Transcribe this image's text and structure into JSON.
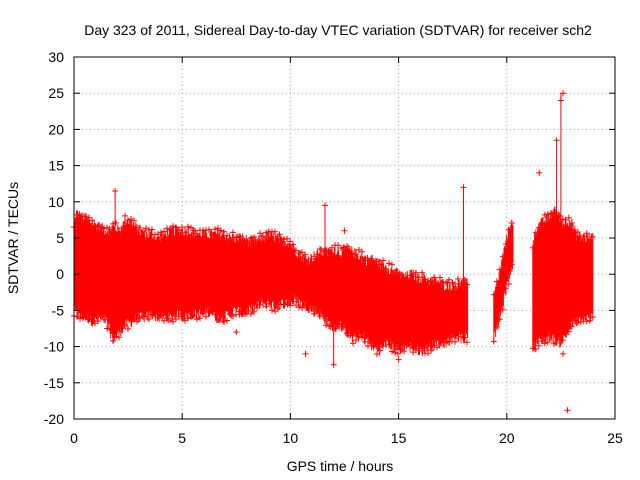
{
  "chart_data": {
    "type": "scatter",
    "title": "Day 323 of 2011, Sidereal Day-to-day VTEC variation (SDTVAR) for receiver sch2",
    "xlabel": "GPS time / hours",
    "ylabel": "SDTVAR / TECUs",
    "xlim": [
      0,
      25
    ],
    "ylim": [
      -20,
      30
    ],
    "xticks": [
      0,
      5,
      10,
      15,
      20,
      25
    ],
    "yticks": [
      -20,
      -15,
      -10,
      -5,
      0,
      5,
      10,
      15,
      20,
      25,
      30
    ],
    "grid": true,
    "marker": "+",
    "color": "#ff0000",
    "envelope_segments": [
      {
        "x": [
          0.0,
          0.1,
          0.3,
          0.6,
          0.9,
          1.2,
          1.5,
          1.8,
          2.1,
          2.4,
          2.7,
          3.0,
          3.3,
          3.6,
          3.9,
          4.2,
          4.5,
          4.8,
          5.1,
          5.4,
          5.7,
          6.0,
          6.3,
          6.6,
          6.9,
          7.2,
          7.5,
          7.8,
          8.1,
          8.4,
          8.7,
          9.0,
          9.3,
          9.6,
          9.9,
          10.2,
          10.5,
          10.8,
          11.1,
          11.4,
          11.7,
          12.0,
          12.3,
          12.6,
          12.9,
          13.2,
          13.5,
          13.8,
          14.1,
          14.4,
          14.7,
          15.0,
          15.3,
          15.6,
          15.9,
          16.2,
          16.5,
          16.8,
          17.1,
          17.4,
          17.7,
          18.0,
          18.2
        ],
        "upper": [
          6.5,
          8.5,
          8.0,
          7.5,
          7.0,
          6.5,
          6.0,
          6.5,
          6.0,
          7.5,
          7.0,
          6.0,
          5.5,
          5.5,
          5.0,
          5.5,
          6.0,
          6.0,
          6.0,
          6.0,
          5.5,
          5.5,
          5.5,
          5.5,
          5.5,
          5.0,
          5.0,
          5.0,
          4.5,
          4.5,
          5.0,
          5.5,
          5.0,
          4.5,
          4.5,
          3.5,
          2.5,
          2.0,
          2.5,
          3.0,
          3.0,
          3.5,
          3.0,
          3.5,
          3.0,
          2.5,
          2.0,
          2.0,
          1.5,
          1.0,
          0.5,
          0.0,
          -0.5,
          0.0,
          -0.5,
          -0.5,
          -1.0,
          -1.0,
          -1.5,
          -1.5,
          -1.5,
          -1.0,
          -1.5
        ],
        "lower": [
          -5.0,
          -5.5,
          -6.0,
          -6.0,
          -6.5,
          -6.0,
          -6.5,
          -9.0,
          -8.0,
          -7.0,
          -6.5,
          -6.0,
          -6.0,
          -5.5,
          -6.0,
          -6.0,
          -6.0,
          -5.5,
          -6.0,
          -5.5,
          -5.5,
          -5.5,
          -5.0,
          -6.0,
          -6.0,
          -5.5,
          -5.0,
          -5.5,
          -5.0,
          -4.5,
          -4.0,
          -4.0,
          -4.5,
          -4.0,
          -4.0,
          -3.5,
          -4.0,
          -4.5,
          -5.0,
          -5.5,
          -6.5,
          -7.5,
          -7.0,
          -8.0,
          -9.0,
          -8.5,
          -9.0,
          -10.0,
          -10.5,
          -9.5,
          -10.0,
          -10.5,
          -10.0,
          -10.0,
          -10.5,
          -10.5,
          -10.0,
          -9.5,
          -9.5,
          -9.0,
          -8.5,
          -9.0,
          -8.5
        ]
      },
      {
        "x": [
          19.4,
          19.6,
          19.8,
          20.0,
          20.2,
          20.3
        ],
        "upper": [
          -3.0,
          -1.0,
          2.0,
          5.0,
          7.5,
          6.0
        ],
        "lower": [
          -8.5,
          -7.0,
          -4.5,
          -1.5,
          0.5,
          2.0
        ]
      },
      {
        "x": [
          21.2,
          21.4,
          21.6,
          21.8,
          22.0,
          22.2,
          22.4,
          22.6,
          22.8,
          23.0,
          23.2,
          23.4,
          23.6,
          23.8,
          24.0
        ],
        "upper": [
          4.0,
          6.5,
          7.0,
          7.5,
          8.0,
          9.0,
          8.0,
          7.0,
          7.5,
          7.0,
          5.5,
          5.0,
          5.0,
          5.0,
          5.0
        ],
        "lower": [
          -10.0,
          -9.5,
          -9.0,
          -9.0,
          -8.5,
          -9.0,
          -9.5,
          -9.0,
          -8.0,
          -7.0,
          -6.5,
          -6.5,
          -6.0,
          -6.0,
          -6.0
        ]
      }
    ],
    "outliers": [
      {
        "x": 1.9,
        "y": 11.5
      },
      {
        "x": 10.7,
        "y": -11.0
      },
      {
        "x": 11.6,
        "y": 9.5
      },
      {
        "x": 12.0,
        "y": -12.5
      },
      {
        "x": 12.5,
        "y": 6.0
      },
      {
        "x": 15.0,
        "y": -11.8
      },
      {
        "x": 18.0,
        "y": 12.0
      },
      {
        "x": 21.5,
        "y": 14.0
      },
      {
        "x": 22.3,
        "y": 18.5
      },
      {
        "x": 22.5,
        "y": 24.0
      },
      {
        "x": 22.6,
        "y": 25.0
      },
      {
        "x": 22.6,
        "y": -11.0
      },
      {
        "x": 22.8,
        "y": -18.8
      },
      {
        "x": 7.5,
        "y": -8.0
      },
      {
        "x": 9.5,
        "y": 5.5
      },
      {
        "x": 16.5,
        "y": -10.5
      }
    ],
    "spikes": [
      {
        "x": 1.9,
        "y1": -6.0,
        "y2": 11.5
      },
      {
        "x": 11.6,
        "y1": -4.0,
        "y2": 9.5
      },
      {
        "x": 12.0,
        "y1": -12.5,
        "y2": 3.0
      },
      {
        "x": 18.0,
        "y1": -8.0,
        "y2": 12.0
      },
      {
        "x": 22.5,
        "y1": -8.0,
        "y2": 25.0
      },
      {
        "x": 22.3,
        "y1": -9.0,
        "y2": 18.5
      }
    ]
  }
}
